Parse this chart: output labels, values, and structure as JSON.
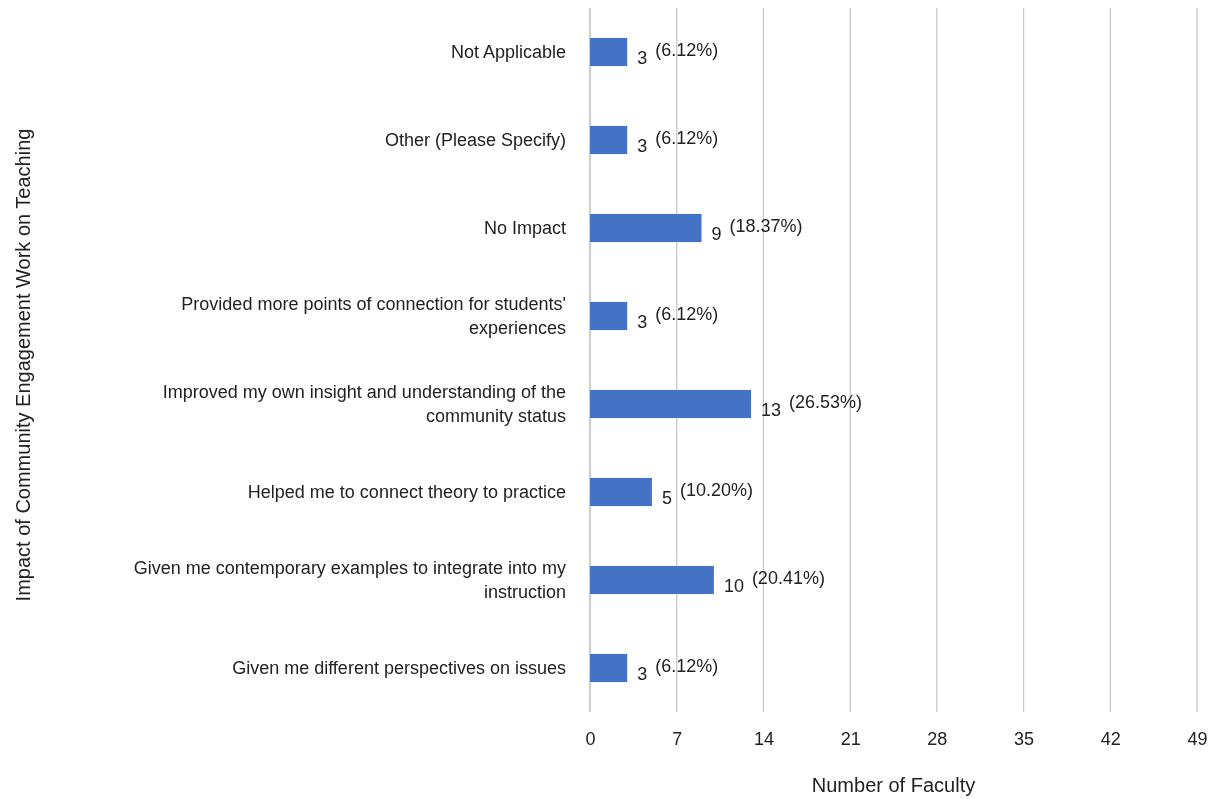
{
  "chart_data": {
    "type": "bar",
    "orientation": "horizontal",
    "xlabel": "Number of Faculty",
    "ylabel": "Impact of Community Engagement Work on Teaching",
    "categories": [
      "Not Applicable",
      "Other (Please Specify)",
      "No Impact",
      "Provided more points of connection for students' experiences",
      "Improved my own insight and understanding of the community status",
      "Helped me to connect theory to practice",
      "Given me contemporary examples to integrate into my instruction",
      "Given me different perspectives on issues"
    ],
    "values": [
      3,
      3,
      9,
      3,
      13,
      5,
      10,
      3
    ],
    "color": "#4472c4",
    "xlim": [
      0,
      49
    ],
    "xticks": [
      0,
      7,
      14,
      21,
      28,
      35,
      42,
      49
    ],
    "grid": "x",
    "data_labels": true,
    "annotations": [
      {
        "text": "(6.12%)",
        "x": 3,
        "y": "Not Applicable"
      },
      {
        "text": "(6.12%)",
        "x": 3,
        "y": "Other (Please Specify)"
      },
      {
        "text": "(18.37%)",
        "x": 9,
        "y": "No Impact"
      },
      {
        "text": "(6.12%)",
        "x": 3,
        "y": "Provided more points of connection for students' experiences"
      },
      {
        "text": "(26.53%)",
        "x": 13,
        "y": "Improved my own insight and understanding of the community status"
      },
      {
        "text": "(10.20%)",
        "x": 5,
        "y": "Helped me to connect theory to practice"
      },
      {
        "text": "(20.41%)",
        "x": 10,
        "y": "Given me contemporary examples to integrate into my instruction"
      },
      {
        "text": "(6.12%)",
        "x": 3,
        "y": "Given me different perspectives on issues"
      }
    ]
  }
}
